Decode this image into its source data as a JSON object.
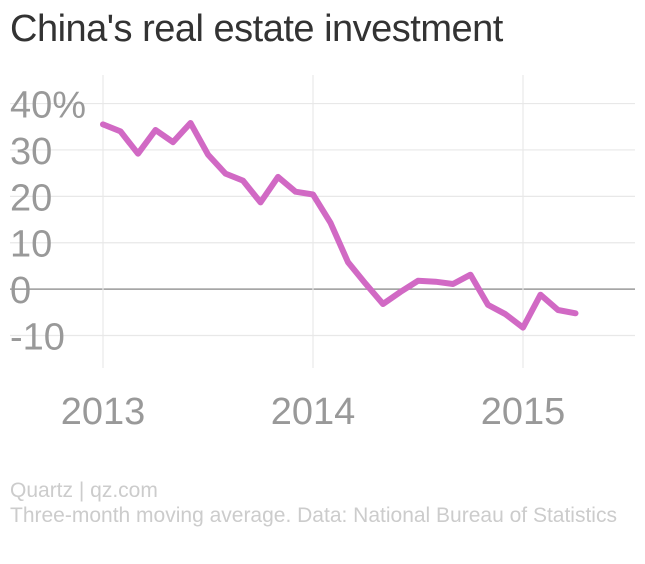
{
  "title": "China's real estate investment",
  "footer": {
    "credit": "Quartz | qz.com",
    "note": "Three-month moving average. Data: National Bureau of Statistics"
  },
  "colors": {
    "line": "#D169C4",
    "grid": "#e8e8e8",
    "zero_line": "#999999",
    "tick_text": "#999999",
    "title": "#333333",
    "footer": "#cccccc"
  },
  "chart_data": {
    "type": "line",
    "title": "China's real estate investment",
    "xlabel": "",
    "ylabel": "",
    "x_ticks": [
      "2013",
      "2014",
      "2015"
    ],
    "y_ticks": [
      "40%",
      "30",
      "20",
      "10",
      "0",
      "-10"
    ],
    "ylim": [
      -17,
      44
    ],
    "grid": true,
    "series": [
      {
        "x": [
          "2012-12",
          "2013-01",
          "2013-02",
          "2013-03",
          "2013-04",
          "2013-05",
          "2013-06",
          "2013-07",
          "2013-08",
          "2013-09",
          "2013-10",
          "2013-11",
          "2013-12",
          "2014-01",
          "2014-02",
          "2014-03",
          "2014-04",
          "2014-05",
          "2014-06",
          "2014-07",
          "2014-08",
          "2014-09",
          "2014-10",
          "2014-11",
          "2014-12",
          "2015-01",
          "2015-02",
          "2015-03"
        ],
        "values": [
          35.5,
          34,
          29.2,
          34.3,
          31.7,
          35.8,
          29,
          24.9,
          23.4,
          18.7,
          24.2,
          21,
          20.4,
          14.3,
          5.8,
          1.2,
          -3.2,
          -0.6,
          1.8,
          1.6,
          1.1,
          3.1,
          -3.4,
          -5.4,
          -8.3,
          -1.2,
          -4.5,
          -5.2
        ]
      }
    ]
  }
}
